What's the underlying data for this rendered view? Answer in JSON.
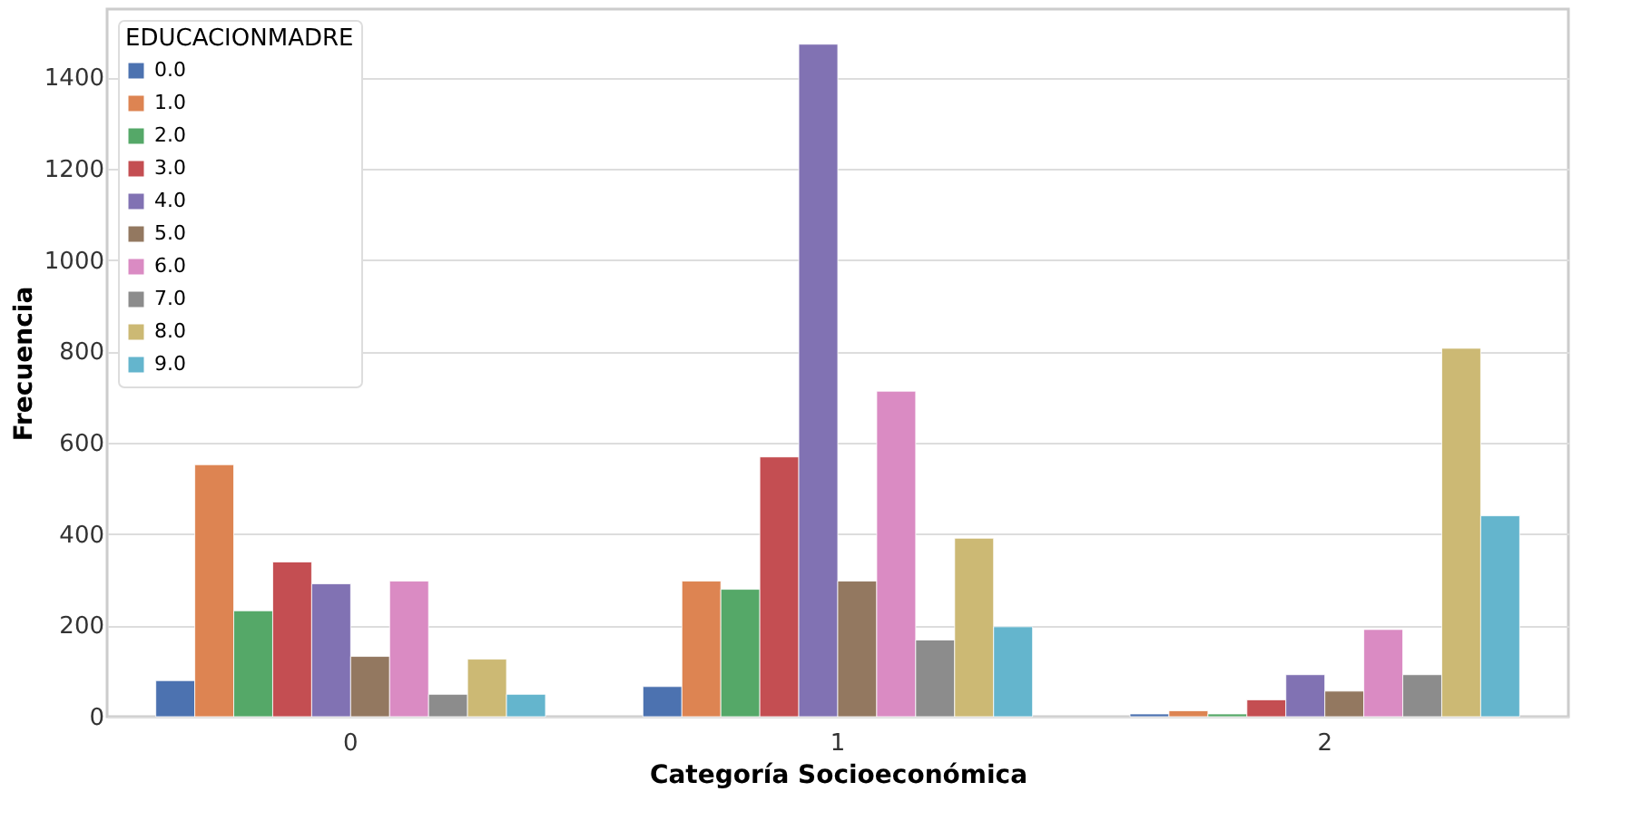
{
  "chart_data": {
    "type": "bar",
    "xlabel": "Categoría Socioeconómica",
    "ylabel": "Frecuencia",
    "legend_title": "EDUCACIONMADRE",
    "categories": [
      "0",
      "1",
      "2"
    ],
    "series": [
      {
        "name": "0.0",
        "color": "#4c72b0",
        "values": [
          79,
          66,
          6
        ]
      },
      {
        "name": "1.0",
        "color": "#dd8452",
        "values": [
          552,
          297,
          13
        ]
      },
      {
        "name": "2.0",
        "color": "#55a868",
        "values": [
          232,
          279,
          6
        ]
      },
      {
        "name": "3.0",
        "color": "#c44e52",
        "values": [
          339,
          569,
          37
        ]
      },
      {
        "name": "4.0",
        "color": "#8172b3",
        "values": [
          291,
          1473,
          92
        ]
      },
      {
        "name": "5.0",
        "color": "#937860",
        "values": [
          132,
          297,
          56
        ]
      },
      {
        "name": "6.0",
        "color": "#da8bc3",
        "values": [
          297,
          713,
          191
        ]
      },
      {
        "name": "7.0",
        "color": "#8c8c8c",
        "values": [
          49,
          168,
          92
        ]
      },
      {
        "name": "8.0",
        "color": "#ccb974",
        "values": [
          126,
          391,
          807
        ]
      },
      {
        "name": "9.0",
        "color": "#64b5cd",
        "values": [
          49,
          197,
          440
        ]
      }
    ],
    "ylim": [
      0,
      1550
    ],
    "yticks": [
      0,
      200,
      400,
      600,
      800,
      1000,
      1200,
      1400
    ],
    "grid": "y",
    "legend": "top left"
  }
}
